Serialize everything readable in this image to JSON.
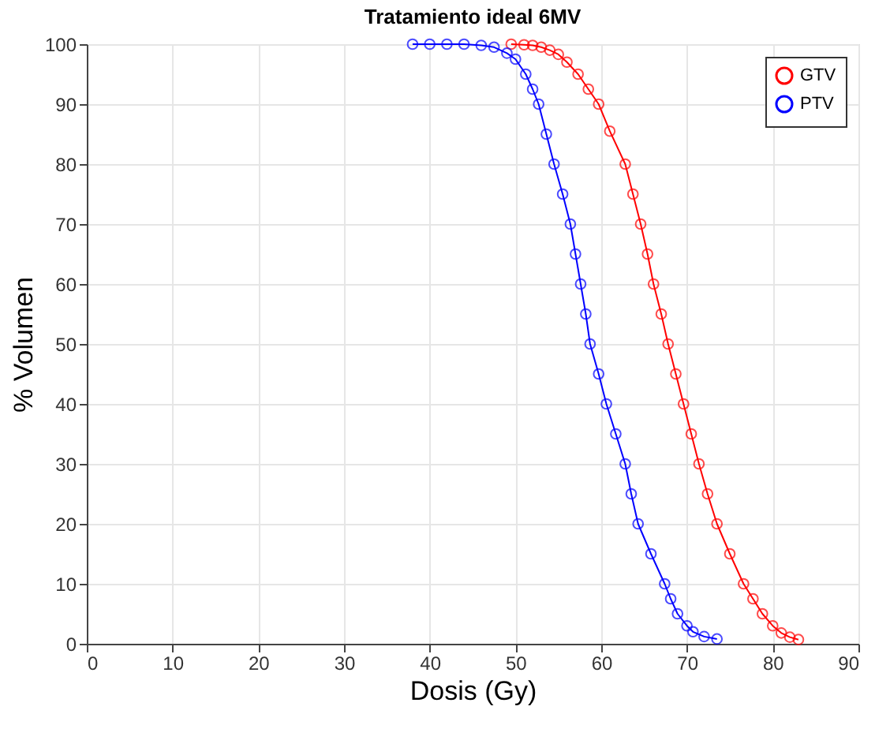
{
  "chart_data": {
    "type": "line",
    "title": "Tratamiento ideal 6MV",
    "xlabel": "Dosis (Gy)",
    "ylabel": "% Volumen",
    "xlim": [
      0,
      90
    ],
    "ylim": [
      0,
      100
    ],
    "xticks": [
      0,
      10,
      20,
      30,
      40,
      50,
      60,
      70,
      80,
      90
    ],
    "yticks": [
      0,
      10,
      20,
      30,
      40,
      50,
      60,
      70,
      80,
      90,
      100
    ],
    "grid": true,
    "legend": "top right",
    "marker": "circle",
    "line_style": "solid",
    "series": [
      {
        "name": "GTV",
        "color": "#ff0000",
        "x": [
          49.5,
          51,
          52,
          53,
          54,
          55,
          56,
          57.3,
          58.5,
          59.7,
          61,
          62.8,
          63.7,
          64.6,
          65.4,
          66.1,
          67,
          67.8,
          68.7,
          69.6,
          70.5,
          71.4,
          72.4,
          73.5,
          75,
          76.6,
          77.7,
          78.8,
          80,
          81,
          82,
          83
        ],
        "values": [
          100,
          99.9,
          99.8,
          99.5,
          99,
          98.3,
          97,
          95,
          92.5,
          90,
          85.5,
          80,
          75,
          70,
          65,
          60,
          55,
          50,
          45,
          40,
          35,
          30,
          25,
          20,
          15,
          10,
          7.5,
          5,
          3,
          1.8,
          1.1,
          0.7
        ]
      },
      {
        "name": "PTV",
        "color": "#0000ff",
        "x": [
          38,
          40,
          42,
          44,
          46,
          47.5,
          49,
          50,
          51.2,
          52,
          52.7,
          53.6,
          54.5,
          55.5,
          56.4,
          57,
          57.6,
          58.2,
          58.7,
          59.7,
          60.6,
          61.7,
          62.8,
          63.5,
          64.3,
          65.8,
          67.4,
          68.1,
          68.9,
          70,
          70.7,
          72,
          73.5
        ],
        "values": [
          100,
          100,
          100,
          100,
          99.8,
          99.5,
          98.5,
          97.5,
          95,
          92.5,
          90,
          85,
          80,
          75,
          70,
          65,
          60,
          55,
          50,
          45,
          40,
          35,
          30,
          25,
          20,
          15,
          10,
          7.5,
          5,
          3,
          2,
          1.2,
          0.8
        ]
      }
    ]
  }
}
